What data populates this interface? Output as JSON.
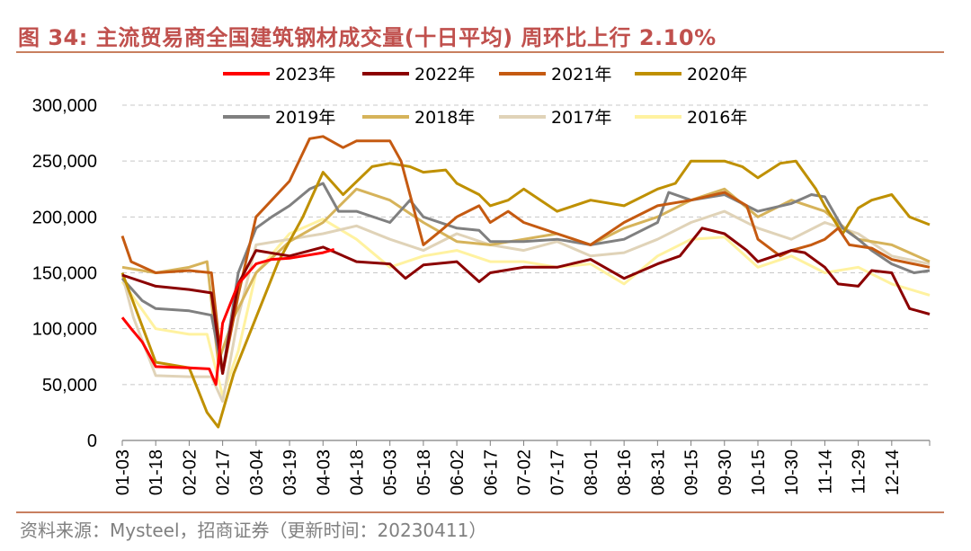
{
  "title": "图 34:  主流贸易商全国建筑钢材成交量(十日平均) 周环比上行 2.10%",
  "source": "资料来源：Mysteel，招商证券（更新时间：20230411）",
  "chart_data": {
    "type": "line",
    "title": "图 34:  主流贸易商全国建筑钢材成交量(十日平均) 周环比上行 2.10%",
    "ylim": [
      0,
      300000
    ],
    "yticks": [
      0,
      50000,
      100000,
      150000,
      200000,
      250000,
      300000
    ],
    "ytick_labels": [
      "0",
      "50,000",
      "100,000",
      "150,000",
      "200,000",
      "250,000",
      "300,000"
    ],
    "xtick_labels": [
      "01-03",
      "01-18",
      "02-02",
      "02-17",
      "03-04",
      "03-19",
      "04-03",
      "04-18",
      "05-03",
      "05-18",
      "06-02",
      "06-17",
      "07-02",
      "07-17",
      "08-01",
      "08-16",
      "08-31",
      "09-15",
      "09-30",
      "10-15",
      "10-30",
      "11-14",
      "11-29",
      "12-14"
    ],
    "x_unit": "month-day",
    "grid": "horizontal dashed",
    "legend_position": "top",
    "series": [
      {
        "name": "2023年",
        "color": "#ff0000",
        "points": [
          [
            "01-03",
            110000
          ],
          [
            "01-07",
            100000
          ],
          [
            "01-12",
            88000
          ],
          [
            "01-18",
            66000
          ],
          [
            "02-02",
            65000
          ],
          [
            "02-11",
            64000
          ],
          [
            "02-14",
            50000
          ],
          [
            "02-17",
            105000
          ],
          [
            "02-24",
            140000
          ],
          [
            "03-04",
            158000
          ],
          [
            "03-11",
            162000
          ],
          [
            "03-19",
            163000
          ],
          [
            "03-25",
            165000
          ],
          [
            "04-03",
            168000
          ],
          [
            "04-08",
            171000
          ]
        ]
      },
      {
        "name": "2022年",
        "color": "#8b0000",
        "points": [
          [
            "01-03",
            148000
          ],
          [
            "01-18",
            138000
          ],
          [
            "02-02",
            135000
          ],
          [
            "02-12",
            132000
          ],
          [
            "02-17",
            60000
          ],
          [
            "02-24",
            140000
          ],
          [
            "03-04",
            170000
          ],
          [
            "03-19",
            165000
          ],
          [
            "04-03",
            173000
          ],
          [
            "04-18",
            160000
          ],
          [
            "05-03",
            158000
          ],
          [
            "05-10",
            145000
          ],
          [
            "05-18",
            157000
          ],
          [
            "06-02",
            160000
          ],
          [
            "06-12",
            142000
          ],
          [
            "06-17",
            150000
          ],
          [
            "07-02",
            155000
          ],
          [
            "07-17",
            155000
          ],
          [
            "08-01",
            162000
          ],
          [
            "08-16",
            145000
          ],
          [
            "08-31",
            158000
          ],
          [
            "09-10",
            165000
          ],
          [
            "09-20",
            190000
          ],
          [
            "09-30",
            185000
          ],
          [
            "10-10",
            170000
          ],
          [
            "10-15",
            160000
          ],
          [
            "10-30",
            170000
          ],
          [
            "11-05",
            168000
          ],
          [
            "11-14",
            155000
          ],
          [
            "11-20",
            140000
          ],
          [
            "11-29",
            138000
          ],
          [
            "12-05",
            152000
          ],
          [
            "12-14",
            150000
          ],
          [
            "12-22",
            118000
          ],
          [
            "12-31",
            113000
          ]
        ]
      },
      {
        "name": "2021年",
        "color": "#c55a11",
        "points": [
          [
            "01-03",
            183000
          ],
          [
            "01-07",
            160000
          ],
          [
            "01-18",
            150000
          ],
          [
            "02-02",
            152000
          ],
          [
            "02-12",
            150000
          ],
          [
            "02-17",
            60000
          ],
          [
            "02-24",
            130000
          ],
          [
            "03-04",
            200000
          ],
          [
            "03-19",
            232000
          ],
          [
            "03-28",
            270000
          ],
          [
            "04-03",
            272000
          ],
          [
            "04-12",
            262000
          ],
          [
            "04-18",
            268000
          ],
          [
            "05-03",
            268000
          ],
          [
            "05-08",
            250000
          ],
          [
            "05-18",
            175000
          ],
          [
            "05-26",
            188000
          ],
          [
            "06-02",
            200000
          ],
          [
            "06-12",
            210000
          ],
          [
            "06-17",
            195000
          ],
          [
            "06-25",
            205000
          ],
          [
            "07-02",
            195000
          ],
          [
            "07-17",
            185000
          ],
          [
            "08-01",
            175000
          ],
          [
            "08-16",
            195000
          ],
          [
            "08-31",
            210000
          ],
          [
            "09-15",
            215000
          ],
          [
            "09-30",
            222000
          ],
          [
            "10-10",
            210000
          ],
          [
            "10-15",
            180000
          ],
          [
            "10-25",
            165000
          ],
          [
            "10-30",
            170000
          ],
          [
            "11-08",
            175000
          ],
          [
            "11-14",
            180000
          ],
          [
            "11-20",
            190000
          ],
          [
            "11-25",
            175000
          ],
          [
            "12-05",
            172000
          ],
          [
            "12-14",
            162000
          ],
          [
            "12-31",
            155000
          ]
        ]
      },
      {
        "name": "2020年",
        "color": "#bf9000",
        "points": [
          [
            "01-03",
            150000
          ],
          [
            "01-18",
            70000
          ],
          [
            "02-02",
            65000
          ],
          [
            "02-10",
            25000
          ],
          [
            "02-15",
            12000
          ],
          [
            "02-22",
            60000
          ],
          [
            "03-04",
            110000
          ],
          [
            "03-14",
            160000
          ],
          [
            "03-25",
            200000
          ],
          [
            "04-03",
            240000
          ],
          [
            "04-12",
            220000
          ],
          [
            "04-25",
            245000
          ],
          [
            "05-03",
            248000
          ],
          [
            "05-12",
            245000
          ],
          [
            "05-18",
            240000
          ],
          [
            "05-28",
            242000
          ],
          [
            "06-02",
            230000
          ],
          [
            "06-12",
            220000
          ],
          [
            "06-17",
            210000
          ],
          [
            "06-25",
            215000
          ],
          [
            "07-02",
            225000
          ],
          [
            "07-17",
            205000
          ],
          [
            "08-01",
            215000
          ],
          [
            "08-16",
            210000
          ],
          [
            "08-31",
            225000
          ],
          [
            "09-08",
            230000
          ],
          [
            "09-15",
            250000
          ],
          [
            "09-30",
            250000
          ],
          [
            "10-08",
            245000
          ],
          [
            "10-15",
            235000
          ],
          [
            "10-25",
            248000
          ],
          [
            "11-01",
            250000
          ],
          [
            "11-10",
            225000
          ],
          [
            "11-14",
            210000
          ],
          [
            "11-22",
            185000
          ],
          [
            "11-29",
            208000
          ],
          [
            "12-05",
            215000
          ],
          [
            "12-14",
            220000
          ],
          [
            "12-22",
            200000
          ],
          [
            "12-31",
            193000
          ]
        ]
      },
      {
        "name": "2019年",
        "color": "#808080",
        "points": [
          [
            "01-03",
            145000
          ],
          [
            "01-12",
            125000
          ],
          [
            "01-18",
            118000
          ],
          [
            "02-02",
            116000
          ],
          [
            "02-12",
            112000
          ],
          [
            "02-17",
            60000
          ],
          [
            "02-24",
            150000
          ],
          [
            "03-04",
            190000
          ],
          [
            "03-11",
            200000
          ],
          [
            "03-19",
            210000
          ],
          [
            "03-28",
            225000
          ],
          [
            "04-03",
            230000
          ],
          [
            "04-10",
            205000
          ],
          [
            "04-18",
            205000
          ],
          [
            "05-03",
            195000
          ],
          [
            "05-12",
            215000
          ],
          [
            "05-18",
            200000
          ],
          [
            "06-02",
            190000
          ],
          [
            "06-12",
            188000
          ],
          [
            "06-17",
            178000
          ],
          [
            "07-02",
            178000
          ],
          [
            "07-17",
            180000
          ],
          [
            "08-01",
            175000
          ],
          [
            "08-16",
            180000
          ],
          [
            "08-31",
            195000
          ],
          [
            "09-05",
            222000
          ],
          [
            "09-15",
            215000
          ],
          [
            "09-30",
            220000
          ],
          [
            "10-15",
            205000
          ],
          [
            "10-30",
            212000
          ],
          [
            "11-08",
            220000
          ],
          [
            "11-14",
            218000
          ],
          [
            "11-22",
            190000
          ],
          [
            "11-29",
            180000
          ],
          [
            "12-05",
            170000
          ],
          [
            "12-14",
            158000
          ],
          [
            "12-24",
            150000
          ],
          [
            "12-31",
            152000
          ]
        ]
      },
      {
        "name": "2018年",
        "color": "#d6b35a",
        "points": [
          [
            "01-03",
            155000
          ],
          [
            "01-18",
            150000
          ],
          [
            "02-02",
            155000
          ],
          [
            "02-10",
            160000
          ],
          [
            "02-15",
            70000
          ],
          [
            "02-22",
            110000
          ],
          [
            "03-04",
            150000
          ],
          [
            "03-19",
            178000
          ],
          [
            "04-03",
            195000
          ],
          [
            "04-18",
            225000
          ],
          [
            "05-03",
            215000
          ],
          [
            "05-18",
            195000
          ],
          [
            "06-02",
            178000
          ],
          [
            "06-17",
            175000
          ],
          [
            "07-02",
            180000
          ],
          [
            "07-17",
            185000
          ],
          [
            "08-01",
            175000
          ],
          [
            "08-16",
            190000
          ],
          [
            "08-31",
            200000
          ],
          [
            "09-15",
            215000
          ],
          [
            "09-30",
            225000
          ],
          [
            "10-15",
            200000
          ],
          [
            "10-30",
            215000
          ],
          [
            "11-14",
            205000
          ],
          [
            "11-29",
            180000
          ],
          [
            "12-14",
            175000
          ],
          [
            "12-31",
            160000
          ]
        ]
      },
      {
        "name": "2017年",
        "color": "#e0d3b8",
        "points": [
          [
            "01-03",
            148000
          ],
          [
            "01-08",
            110000
          ],
          [
            "01-18",
            58000
          ],
          [
            "02-02",
            57000
          ],
          [
            "02-12",
            57000
          ],
          [
            "02-17",
            35000
          ],
          [
            "02-24",
            110000
          ],
          [
            "03-04",
            175000
          ],
          [
            "03-19",
            180000
          ],
          [
            "04-03",
            185000
          ],
          [
            "04-18",
            192000
          ],
          [
            "05-03",
            180000
          ],
          [
            "05-18",
            170000
          ],
          [
            "06-02",
            185000
          ],
          [
            "06-17",
            175000
          ],
          [
            "07-02",
            170000
          ],
          [
            "07-17",
            178000
          ],
          [
            "08-01",
            165000
          ],
          [
            "08-16",
            168000
          ],
          [
            "08-31",
            180000
          ],
          [
            "09-15",
            195000
          ],
          [
            "09-30",
            205000
          ],
          [
            "10-15",
            190000
          ],
          [
            "10-30",
            180000
          ],
          [
            "11-14",
            195000
          ],
          [
            "11-29",
            185000
          ],
          [
            "12-14",
            165000
          ],
          [
            "12-31",
            158000
          ]
        ]
      },
      {
        "name": "2016年",
        "color": "#fff2a0",
        "points": [
          [
            "01-03",
            142000
          ],
          [
            "01-18",
            100000
          ],
          [
            "02-02",
            95000
          ],
          [
            "02-10",
            95000
          ],
          [
            "02-17",
            40000
          ],
          [
            "02-24",
            80000
          ],
          [
            "03-04",
            150000
          ],
          [
            "03-19",
            185000
          ],
          [
            "04-03",
            198000
          ],
          [
            "04-18",
            180000
          ],
          [
            "05-03",
            155000
          ],
          [
            "05-18",
            165000
          ],
          [
            "06-02",
            170000
          ],
          [
            "06-17",
            160000
          ],
          [
            "07-02",
            160000
          ],
          [
            "07-17",
            155000
          ],
          [
            "08-01",
            158000
          ],
          [
            "08-16",
            140000
          ],
          [
            "08-31",
            165000
          ],
          [
            "09-15",
            180000
          ],
          [
            "09-30",
            182000
          ],
          [
            "10-15",
            155000
          ],
          [
            "10-30",
            165000
          ],
          [
            "11-14",
            150000
          ],
          [
            "11-29",
            155000
          ],
          [
            "12-14",
            140000
          ],
          [
            "12-31",
            130000
          ]
        ]
      }
    ]
  }
}
